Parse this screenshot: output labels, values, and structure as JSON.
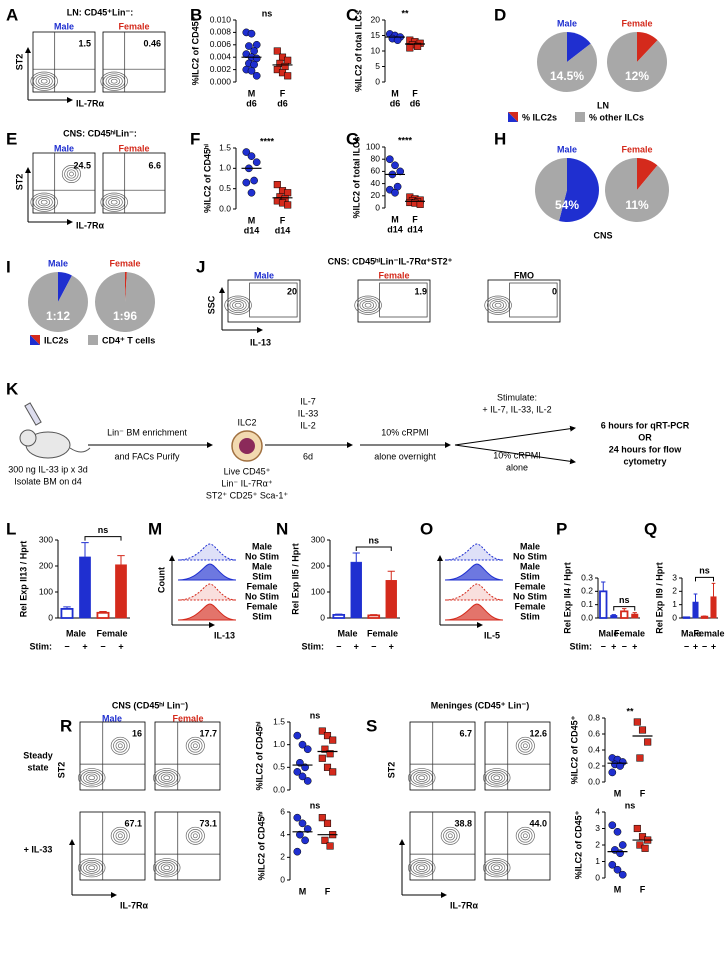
{
  "chart_data": [
    {
      "type": "strip",
      "ylabel": "%ILC2 of CD45⁺",
      "annotation": "ns",
      "ylim": [
        0,
        0.01
      ],
      "yticks": [
        {
          "value": 0,
          "label": "0.000"
        },
        {
          "value": 0.002,
          "label": "0.002"
        },
        {
          "value": 0.004,
          "label": "0.004"
        },
        {
          "value": 0.006,
          "label": "0.006"
        },
        {
          "value": 0.008,
          "label": "0.008"
        },
        {
          "value": 0.01,
          "label": "0.010"
        }
      ],
      "categories": [
        [
          "M",
          "d6"
        ],
        [
          "F",
          "d6"
        ]
      ],
      "series": [
        {
          "color": "#1f2fd0",
          "marker": "circle",
          "values": [
            0.008,
            0.0078,
            0.006,
            0.0058,
            0.005,
            0.0045,
            0.004,
            0.0038,
            0.003,
            0.0028,
            0.002,
            0.0018,
            0.001
          ]
        },
        {
          "color": "#d42a1c",
          "marker": "square",
          "values": [
            0.005,
            0.004,
            0.0035,
            0.003,
            0.0025,
            0.002,
            0.0015,
            0.001
          ]
        }
      ]
    },
    {
      "type": "strip",
      "ylabel": "%ILC2 of total ILCs",
      "annotation": "**",
      "ylim": [
        0,
        20
      ],
      "yticks": [
        0,
        5,
        10,
        15,
        20
      ],
      "categories": [
        [
          "M",
          "d6"
        ],
        [
          "F",
          "d6"
        ]
      ],
      "series": [
        {
          "color": "#1f2fd0",
          "marker": "circle",
          "values": [
            15.5,
            15,
            14.5,
            14,
            13.5
          ]
        },
        {
          "color": "#d42a1c",
          "marker": "square",
          "values": [
            13.5,
            13,
            12.5,
            12,
            11.5,
            11
          ]
        }
      ]
    },
    {
      "type": "pie",
      "title": "Male",
      "values": [
        14.5,
        85.5
      ],
      "value_labels": [
        "14.5%",
        null
      ],
      "colors": [
        "#1f2fd0",
        "#a8a8a8"
      ]
    },
    {
      "type": "pie",
      "title": "Female",
      "values": [
        12,
        88
      ],
      "value_labels": [
        "12%",
        null
      ],
      "colors": [
        "#d42a1c",
        "#a8a8a8"
      ]
    },
    {
      "type": "strip",
      "ylabel": "%ILC2 of CD45ʰⁱ",
      "annotation": "****",
      "ylim": [
        0,
        1.5
      ],
      "yticks": [
        {
          "value": 0,
          "label": "0.0"
        },
        0.5,
        {
          "value": 1,
          "label": "1.0"
        },
        1.5
      ],
      "categories": [
        [
          "M",
          "d14"
        ],
        [
          "F",
          "d14"
        ]
      ],
      "series": [
        {
          "color": "#1f2fd0",
          "marker": "circle",
          "values": [
            1.4,
            1.3,
            1.15,
            1.0,
            0.7,
            0.65,
            0.4
          ]
        },
        {
          "color": "#d42a1c",
          "marker": "square",
          "values": [
            0.6,
            0.45,
            0.4,
            0.3,
            0.25,
            0.2,
            0.15,
            0.1
          ]
        }
      ]
    },
    {
      "type": "strip",
      "ylabel": "%ILC2 of total ILCs",
      "annotation": "****",
      "ylim": [
        0,
        100
      ],
      "yticks": [
        0,
        20,
        40,
        60,
        80,
        100
      ],
      "categories": [
        [
          "M",
          "d14"
        ],
        [
          "F",
          "d14"
        ]
      ],
      "series": [
        {
          "color": "#1f2fd0",
          "marker": "circle",
          "values": [
            80,
            70,
            60,
            55,
            35,
            30,
            25
          ]
        },
        {
          "color": "#d42a1c",
          "marker": "square",
          "values": [
            18,
            15,
            13,
            12,
            10,
            9,
            8,
            6
          ]
        }
      ]
    },
    {
      "type": "pie",
      "title": "Male",
      "values": [
        54,
        46
      ],
      "value_labels": [
        "54%",
        null
      ],
      "colors": [
        "#1f2fd0",
        "#a8a8a8"
      ]
    },
    {
      "type": "pie",
      "title": "Female",
      "values": [
        11,
        89
      ],
      "value_labels": [
        "11%",
        null
      ],
      "colors": [
        "#d42a1c",
        "#a8a8a8"
      ]
    },
    {
      "type": "pie",
      "title": "Male",
      "values": [
        7.7,
        92.3
      ],
      "value_labels": [
        "1:12",
        null
      ],
      "colors": [
        "#1f2fd0",
        "#a8a8a8"
      ]
    },
    {
      "type": "pie",
      "title": "Female",
      "values": [
        1,
        99
      ],
      "value_labels": [
        "1:96",
        null
      ],
      "colors": [
        "#d42a1c",
        "#a8a8a8"
      ]
    },
    {
      "type": "bar",
      "ylabel": "Rel Exp Il13 / Hprt",
      "annotation": "ns",
      "ylim": [
        0,
        300
      ],
      "yticks": [
        0,
        100,
        200,
        300
      ],
      "xlabel": "Stim:",
      "categories": [
        "−",
        "+",
        "−",
        "+"
      ],
      "groups": [
        "Male",
        "Female"
      ],
      "values": [
        35,
        235,
        20,
        205
      ],
      "errors": [
        8,
        55,
        5,
        35
      ],
      "colors": [
        "#1f2fd0",
        "#1f2fd0",
        "#d42a1c",
        "#d42a1c"
      ],
      "filled": [
        false,
        true,
        false,
        true
      ]
    },
    {
      "type": "bar",
      "ylabel": "Rel Exp Il5 / Hprt",
      "annotation": "ns",
      "ylim": [
        0,
        300
      ],
      "yticks": [
        0,
        100,
        200,
        300
      ],
      "xlabel": "Stim:",
      "categories": [
        "−",
        "+",
        "−",
        "+"
      ],
      "groups": [
        "Male",
        "Female"
      ],
      "values": [
        12,
        215,
        10,
        145
      ],
      "errors": [
        3,
        35,
        3,
        35
      ],
      "colors": [
        "#1f2fd0",
        "#1f2fd0",
        "#d42a1c",
        "#d42a1c"
      ],
      "filled": [
        false,
        true,
        false,
        true
      ]
    },
    {
      "type": "bar",
      "ylabel": "Rel Exp Il4 / Hprt",
      "annotation": "ns",
      "ylim": [
        0,
        0.3
      ],
      "yticks": [
        {
          "value": 0,
          "label": "0.0"
        },
        0.1,
        0.2,
        0.3
      ],
      "xlabel": "Stim:",
      "categories": [
        "−",
        "+",
        "−",
        "+"
      ],
      "groups": [
        "Male",
        "Female"
      ],
      "values": [
        0.2,
        0.02,
        0.05,
        0.03
      ],
      "errors": [
        0.07,
        0.005,
        0.02,
        0.01
      ],
      "colors": [
        "#1f2fd0",
        "#1f2fd0",
        "#d42a1c",
        "#d42a1c"
      ],
      "filled": [
        false,
        true,
        false,
        true
      ]
    },
    {
      "type": "bar",
      "ylabel": "Rel Exp Il9 / Hprt",
      "annotation": "ns",
      "ylim": [
        0,
        3
      ],
      "yticks": [
        0,
        1,
        2,
        3
      ],
      "categories": [
        "−",
        "+",
        "−",
        "+"
      ],
      "groups": [
        "Male",
        "Female"
      ],
      "values": [
        0.05,
        1.2,
        0.1,
        1.6
      ],
      "errors": [
        0.02,
        0.6,
        0.05,
        1.0
      ],
      "colors": [
        "#1f2fd0",
        "#1f2fd0",
        "#d42a1c",
        "#d42a1c"
      ],
      "filled": [
        false,
        true,
        false,
        true
      ]
    },
    {
      "type": "strip",
      "ylabel": "%ILC2 of CD45ʰⁱ",
      "annotation": "ns",
      "ylim": [
        0,
        1.5
      ],
      "yticks": [
        {
          "value": 0,
          "label": "0.0"
        },
        0.5,
        {
          "value": 1,
          "label": "1.0"
        },
        1.5
      ],
      "series": [
        {
          "color": "#1f2fd0",
          "marker": "circle",
          "values": [
            1.2,
            1.0,
            0.9,
            0.6,
            0.5,
            0.4,
            0.3,
            0.2
          ]
        },
        {
          "color": "#d42a1c",
          "marker": "square",
          "values": [
            1.3,
            1.2,
            1.1,
            0.9,
            0.8,
            0.7,
            0.5,
            0.4
          ]
        }
      ]
    },
    {
      "type": "strip",
      "ylabel": "%ILC2 of CD45ʰⁱ",
      "annotation": "ns",
      "ylim": [
        0,
        6
      ],
      "yticks": [
        0,
        2,
        4,
        6
      ],
      "categories": [
        [
          "M"
        ],
        [
          "F"
        ]
      ],
      "series": [
        {
          "color": "#1f2fd0",
          "marker": "circle",
          "values": [
            5.5,
            5,
            4.5,
            4,
            3.5,
            2.5
          ]
        },
        {
          "color": "#d42a1c",
          "marker": "square",
          "values": [
            5.5,
            5,
            4,
            3.5,
            3
          ]
        }
      ]
    },
    {
      "type": "strip",
      "ylabel": "%ILC2 of CD45⁺",
      "annotation": "**",
      "ylim": [
        0,
        0.8
      ],
      "yticks": [
        {
          "value": 0,
          "label": "0.0"
        },
        0.2,
        0.4,
        0.6,
        0.8
      ],
      "categories": [
        [
          "M"
        ],
        [
          "F"
        ]
      ],
      "series": [
        {
          "color": "#1f2fd0",
          "marker": "circle",
          "values": [
            0.3,
            0.28,
            0.25,
            0.22,
            0.2,
            0.12
          ]
        },
        {
          "color": "#d42a1c",
          "marker": "square",
          "values": [
            0.75,
            0.65,
            0.5,
            0.3
          ]
        }
      ]
    },
    {
      "type": "strip",
      "ylabel": "%ILC2 of CD45⁺",
      "annotation": "ns",
      "ylim": [
        0,
        4
      ],
      "yticks": [
        0,
        1,
        2,
        3,
        4
      ],
      "categories": [
        [
          "M"
        ],
        [
          "F"
        ]
      ],
      "series": [
        {
          "color": "#1f2fd0",
          "marker": "circle",
          "values": [
            3.2,
            2.8,
            2,
            1.7,
            1.5,
            0.8,
            0.5,
            0.2
          ]
        },
        {
          "color": "#d42a1c",
          "marker": "square",
          "values": [
            3,
            2.5,
            2.3,
            2,
            1.8
          ]
        }
      ]
    }
  ],
  "figure": {
    "A": {
      "label": "A",
      "title": "LN: CD45⁺Lin⁻:",
      "groups": [
        "Male",
        "Female"
      ],
      "gates": [
        "1.5",
        "0.46"
      ],
      "y_axis": "ST2",
      "x_axis": "IL-7Rα"
    },
    "B": {
      "label": "B"
    },
    "C": {
      "label": "C"
    },
    "D": {
      "label": "D",
      "tissue": "LN",
      "legend": [
        "% ILC2s",
        "% other ILCs"
      ]
    },
    "E": {
      "label": "E",
      "title": "CNS: CD45ʰⁱLin⁻:",
      "groups": [
        "Male",
        "Female"
      ],
      "gates": [
        "24.5",
        "6.6"
      ],
      "y_axis": "ST2",
      "x_axis": "IL-7Rα"
    },
    "F": {
      "label": "F"
    },
    "G": {
      "label": "G"
    },
    "H": {
      "label": "H",
      "tissue": "CNS"
    },
    "I": {
      "label": "I",
      "legend": [
        "ILC2s",
        "CD4⁺ T cells"
      ]
    },
    "J": {
      "label": "J",
      "title": "CNS: CD45ʰⁱLin⁻IL-7Rα⁺ST2⁺",
      "groups": [
        "Male",
        "Female",
        "FMO"
      ],
      "gates": [
        "20",
        "1.9",
        "0"
      ],
      "y_axis": "SSC",
      "x_axis": "IL-13"
    },
    "K": {
      "label": "K",
      "injection": [
        "300 ng IL-33 ip x 3d",
        "Isolate BM on d4"
      ],
      "enrichment": [
        "Lin⁻ BM enrichment",
        "and FACs Purify"
      ],
      "cell": "ILC2",
      "phenotype": [
        "Live CD45⁺",
        "Lin⁻ IL-7Rα⁺",
        "ST2⁺ CD25⁺ Sca-1⁺"
      ],
      "cytokines": [
        "IL-7",
        "IL-33",
        "IL-2"
      ],
      "expansion": "6d",
      "rest": [
        "10% cRPMI",
        "alone overnight"
      ],
      "stimulate": [
        "Stimulate:",
        "+ IL-7, IL-33, IL-2"
      ],
      "control": [
        "10% cRPMI",
        "alone"
      ],
      "readout": [
        "6 hours for qRT-PCR",
        "OR",
        "24 hours for flow",
        "cytometry"
      ]
    },
    "L": {
      "label": "L"
    },
    "M": {
      "label": "M",
      "conditions": [
        [
          "Male",
          "No Stim"
        ],
        [
          "Male",
          "Stim"
        ],
        [
          "Female",
          "No Stim"
        ],
        [
          "Female",
          "Stim"
        ]
      ],
      "y_axis": "Count",
      "x_axis": "IL-13"
    },
    "N": {
      "label": "N"
    },
    "O": {
      "label": "O",
      "conditions": [
        [
          "Male",
          "No Stim"
        ],
        [
          "Male",
          "Stim"
        ],
        [
          "Female",
          "No Stim"
        ],
        [
          "Female",
          "Stim"
        ]
      ],
      "x_axis": "IL-5"
    },
    "P": {
      "label": "P"
    },
    "Q": {
      "label": "Q"
    },
    "R": {
      "label": "R",
      "title": "CNS (CD45ʰⁱ Lin⁻)",
      "groups": [
        "Male",
        "Female"
      ],
      "conditions": [
        [
          "Steady",
          "state"
        ],
        [
          "+ IL-33"
        ]
      ],
      "gates": [
        "16",
        "17.7",
        "67.1",
        "73.1"
      ],
      "y_axis": "ST2",
      "x_axis": "IL-7Rα"
    },
    "S": {
      "label": "S",
      "title": "Meninges (CD45⁺ Lin⁻)",
      "gates": [
        "6.7",
        "12.6",
        "38.8",
        "44.0"
      ],
      "y_axis": "ST2",
      "x_axis": "IL-7Rα"
    }
  }
}
